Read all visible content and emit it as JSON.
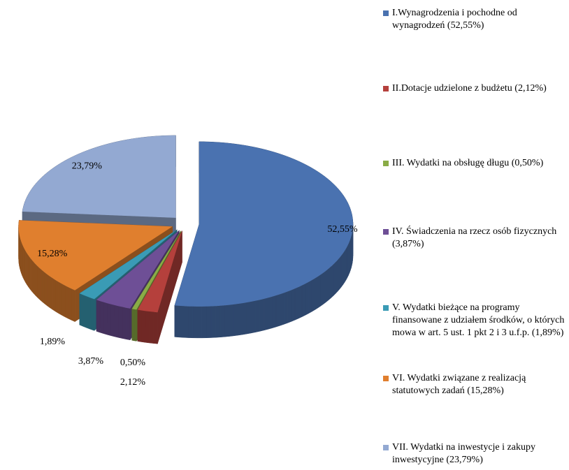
{
  "chart_data": {
    "type": "pie",
    "categories": [
      "I.Wynagrodzenia i pochodne od wynagrodzeń (52,55%)",
      "II.Dotacje udzielone z budżetu (2,12%)",
      "III. Wydatki na obsługę długu (0,50%)",
      "IV. Świadczenia na rzecz osób fizycznych (3,87%)",
      "V. Wydatki bieżące na programy finansowane z udziałem środków, o których mowa w art. 5 ust. 1 pkt 2 i 3 u.f.p. (1,89%)",
      "VI. Wydatki związane z realizacją statutowych zadań (15,28%)",
      "VII. Wydatki na inwestycje i zakupy inwestycyjne (23,79%)"
    ],
    "values": [
      52.55,
      2.12,
      0.5,
      3.87,
      1.89,
      15.28,
      23.79
    ],
    "value_labels": [
      "52,55%",
      "2,12%",
      "0,50%",
      "3,87%",
      "1,89%",
      "15,28%",
      "23,79%"
    ],
    "colors": [
      "#4a72b0",
      "#b5403c",
      "#8aac46",
      "#6e4f96",
      "#3a9bb5",
      "#e07f2e",
      "#93a9d2"
    ],
    "legend": "right"
  }
}
